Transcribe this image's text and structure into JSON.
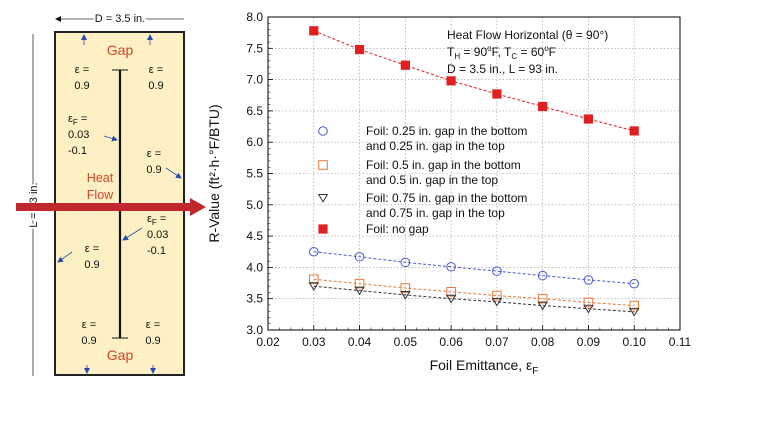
{
  "diagram": {
    "width_label": "D = 3.5 in.",
    "height_label": "L = 93 in.",
    "gap_top": "Gap",
    "gap_bottom": "Gap",
    "heat_flow_line1": "Heat",
    "heat_flow_line2": "Flow",
    "eps_top_left": [
      "ε =",
      "0.9"
    ],
    "eps_top_right": [
      "ε =",
      "0.9"
    ],
    "eps_f_upper": [
      "ε",
      "F",
      " =",
      "0.03",
      "-0.1"
    ],
    "eps_mid_right": [
      "ε =",
      "0.9"
    ],
    "eps_f_lower": [
      "ε",
      "F",
      " =",
      "0.03",
      "-0.1"
    ],
    "eps_mid_left": [
      "ε =",
      "0.9"
    ],
    "eps_bottom_left": [
      "ε =",
      "0.9"
    ],
    "eps_bottom_right": [
      "ε =",
      "0.9"
    ],
    "colors": {
      "fill": "#fdf0c4",
      "gap": "#d2452a",
      "arrow": "#c0282e"
    }
  },
  "chart_data": {
    "type": "scatter",
    "ylabel": "R-Value (ft²·h·°F/BTU)",
    "xlabel": "Foil Emittance, ε",
    "xlabel_sub": "F",
    "xlim": [
      0.02,
      0.11
    ],
    "ylim": [
      3.0,
      8.0
    ],
    "xticks": [
      "0.02",
      "0.03",
      "0.04",
      "0.05",
      "0.06",
      "0.07",
      "0.08",
      "0.09",
      "0.10",
      "0.11"
    ],
    "yticks": [
      "3.0",
      "3.5",
      "4.0",
      "4.5",
      "5.0",
      "5.5",
      "6.0",
      "6.5",
      "7.0",
      "7.5",
      "8.0"
    ],
    "grid": true,
    "annotation": [
      "Heat Flow Horizontal (θ = 90°)",
      "T_H = 90°F, T_C = 60°F",
      "D = 3.5 in., L = 93 in."
    ],
    "x": [
      0.03,
      0.04,
      0.05,
      0.06,
      0.07,
      0.08,
      0.09,
      0.1
    ],
    "series": [
      {
        "name": "Foil: 0.25 in. gap in the bottom and 0.25 in. gap in the top",
        "legend_lines": [
          "Foil: 0.25 in. gap in the bottom",
          "and 0.25 in. gap in the top"
        ],
        "marker": "circle-open",
        "color": "#4a5bd0",
        "values": [
          4.25,
          4.17,
          4.08,
          4.01,
          3.94,
          3.87,
          3.8,
          3.74
        ]
      },
      {
        "name": "Foil: 0.5 in. gap in the bottom and 0.5 in. gap in the top",
        "legend_lines": [
          "Foil: 0.5 in. gap in the bottom",
          "and 0.5 in. gap in the top"
        ],
        "marker": "square-open",
        "color": "#e87a3a",
        "values": [
          3.81,
          3.74,
          3.67,
          3.61,
          3.55,
          3.5,
          3.44,
          3.39
        ]
      },
      {
        "name": "Foil: 0.75 in. gap in the bottom and 0.75 in. gap in the top",
        "legend_lines": [
          "Foil: 0.75 in. gap in the bottom",
          "and 0.75 in. gap in the top"
        ],
        "marker": "triangle-down-open",
        "color": "#333333",
        "values": [
          3.7,
          3.63,
          3.56,
          3.5,
          3.45,
          3.39,
          3.34,
          3.29
        ]
      },
      {
        "name": "Foil: no gap",
        "legend_lines": [
          "Foil: no gap"
        ],
        "marker": "square-filled",
        "color": "#e02020",
        "values": [
          7.78,
          7.48,
          7.23,
          6.98,
          6.77,
          6.57,
          6.37,
          6.18
        ]
      }
    ]
  }
}
